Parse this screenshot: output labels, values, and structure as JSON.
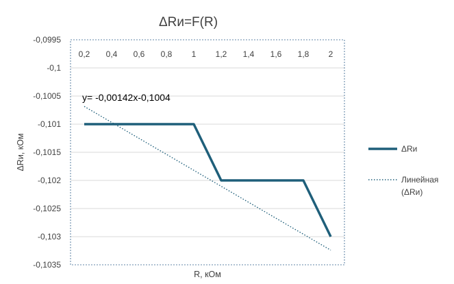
{
  "chart_data": {
    "type": "line",
    "title": "ΔRи=F(R)",
    "xlabel": "R, кОм",
    "ylabel": "ΔRи, кОм",
    "x_ticks": [
      "0,2",
      "0,4",
      "0,6",
      "0,8",
      "1",
      "1,2",
      "1,4",
      "1,6",
      "1,8",
      "2"
    ],
    "y_ticks": [
      "-0,0995",
      "-0,1",
      "-0,1005",
      "-0,101",
      "-0,1015",
      "-0,102",
      "-0,1025",
      "-0,103",
      "-0,1035"
    ],
    "xlim": [
      0.2,
      2
    ],
    "ylim": [
      -0.1035,
      -0.0995
    ],
    "y_tick_step": 0.0005,
    "x_axis_position": "top",
    "grid": true,
    "legend_position": "right",
    "series": [
      {
        "name": "ΔRи",
        "color": "#1f5f7a",
        "style": "solid",
        "x": [
          0.2,
          1.0,
          1.2,
          1.8,
          2.0
        ],
        "y": [
          -0.101,
          -0.101,
          -0.102,
          -0.102,
          -0.103
        ]
      },
      {
        "name": "Линейная (ΔRи)",
        "legend_lines": [
          "Линейная",
          "(ΔRи)"
        ],
        "color": "#1f5f7a",
        "style": "dotted",
        "trendline": {
          "slope": -0.00142,
          "intercept": -0.1004
        },
        "x": [
          0.2,
          2.0
        ],
        "y": [
          -0.100684,
          -0.10324
        ]
      }
    ],
    "annotations": [
      {
        "text": "y= -0,00142x-0,1004"
      }
    ]
  }
}
